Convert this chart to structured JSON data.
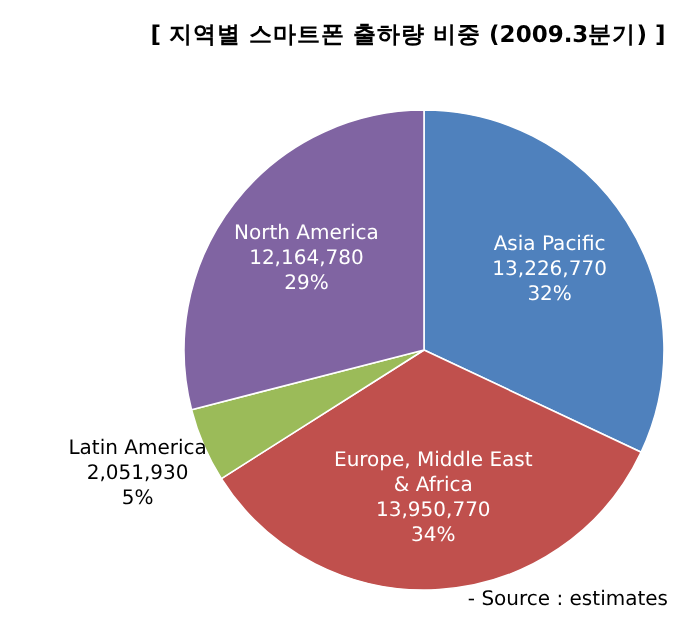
{
  "chart_data": {
    "type": "pie",
    "title": "[ 지역별 스마트폰 출하량 비중 (2009.3분기) ]",
    "categories": [
      "Asia Pacific",
      "Europe, Middle East & Africa",
      "Latin America",
      "North America"
    ],
    "values": [
      32,
      34,
      5,
      29
    ],
    "value_labels": [
      "13,226,770\n32%",
      "13,950,770\n34%",
      "2,051,930\n5%",
      "12,164,780\n29%"
    ],
    "colors": [
      "#4f81bd",
      "#c0504d",
      "#9bbb59",
      "#8064a2"
    ],
    "annotations": [
      "- Source : estimates"
    ]
  }
}
